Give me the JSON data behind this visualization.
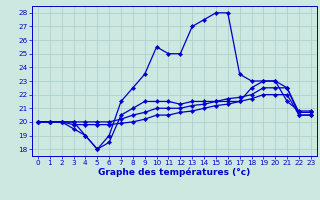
{
  "title": "Graphe des températures (°c)",
  "hours": [
    0,
    1,
    2,
    3,
    4,
    5,
    6,
    7,
    8,
    9,
    10,
    11,
    12,
    13,
    14,
    15,
    16,
    17,
    18,
    19,
    20,
    21,
    22,
    23
  ],
  "line1": [
    20.0,
    20.0,
    20.0,
    20.0,
    19.0,
    18.0,
    19.0,
    21.5,
    22.5,
    23.5,
    25.5,
    25.0,
    25.0,
    27.0,
    27.5,
    28.0,
    28.0,
    23.5,
    23.0,
    23.0,
    23.0,
    21.5,
    20.8,
    20.8
  ],
  "line2": [
    20.0,
    20.0,
    20.0,
    19.5,
    19.0,
    18.0,
    18.5,
    20.5,
    21.0,
    21.5,
    21.5,
    21.5,
    21.3,
    21.5,
    21.5,
    21.5,
    21.5,
    21.5,
    22.5,
    23.0,
    23.0,
    22.5,
    20.5,
    20.5
  ],
  "line3": [
    20.0,
    20.0,
    20.0,
    20.0,
    20.0,
    20.0,
    20.0,
    20.2,
    20.5,
    20.7,
    21.0,
    21.0,
    21.0,
    21.2,
    21.3,
    21.5,
    21.7,
    21.8,
    22.0,
    22.5,
    22.5,
    22.5,
    20.7,
    20.7
  ],
  "line4": [
    20.0,
    20.0,
    20.0,
    19.8,
    19.8,
    19.8,
    19.8,
    19.9,
    20.0,
    20.2,
    20.5,
    20.5,
    20.7,
    20.8,
    21.0,
    21.2,
    21.3,
    21.5,
    21.7,
    22.0,
    22.0,
    22.0,
    20.5,
    20.5
  ],
  "bg_color": "#cce8e0",
  "grid_color": "#aacccc",
  "line_color": "#0000cc",
  "ylim": [
    17.5,
    28.5
  ],
  "yticks": [
    18,
    19,
    20,
    21,
    22,
    23,
    24,
    25,
    26,
    27,
    28
  ],
  "xticks": [
    0,
    1,
    2,
    3,
    4,
    5,
    6,
    7,
    8,
    9,
    10,
    11,
    12,
    13,
    14,
    15,
    16,
    17,
    18,
    19,
    20,
    21,
    22,
    23
  ]
}
